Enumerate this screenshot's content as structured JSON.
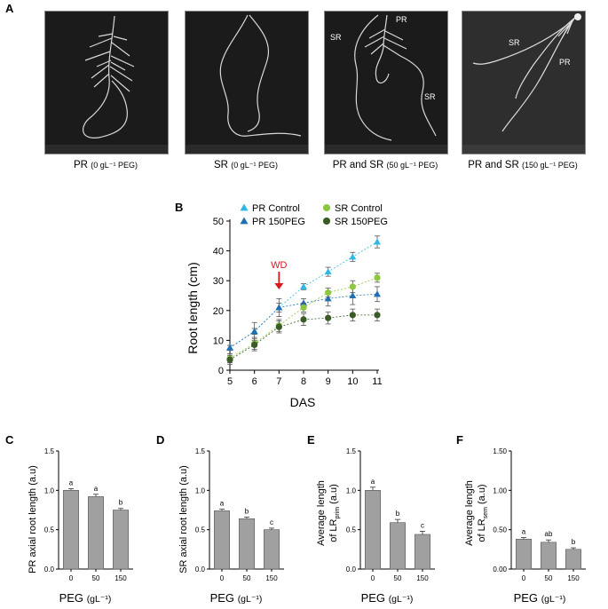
{
  "panel_a": {
    "letter": "A",
    "photos": [
      {
        "caption_main": "PR",
        "caption_detail": "(0 gL⁻¹ PEG)",
        "labels": []
      },
      {
        "caption_main": "SR",
        "caption_detail": "(0 gL⁻¹ PEG)",
        "labels": []
      },
      {
        "caption_main": "PR and SR",
        "caption_detail": "(50 gL⁻¹ PEG)",
        "labels": [
          "PR",
          "SR",
          "SR"
        ]
      },
      {
        "caption_main": "PR and SR",
        "caption_detail": "(150 gL⁻¹ PEG)",
        "labels": [
          "SR",
          "PR"
        ]
      }
    ]
  },
  "chart_data": [
    {
      "panel": "B",
      "type": "line",
      "title": "",
      "xlabel": "DAS",
      "ylabel": "Root length (cm)",
      "x": [
        5,
        6,
        7,
        8,
        9,
        10,
        11
      ],
      "xlim": [
        5,
        11
      ],
      "ylim": [
        0,
        50
      ],
      "yticks": [
        0,
        10,
        20,
        30,
        40,
        50
      ],
      "annotation": {
        "text": "WD",
        "x": 7,
        "color": "#d71920"
      },
      "legend_placement": "top-left",
      "series": [
        {
          "name": "PR Control",
          "marker": "triangle",
          "color": "#2eb8e6",
          "values": [
            7.5,
            13,
            21,
            28,
            33,
            38,
            43
          ],
          "errors": [
            0.8,
            1.0,
            1.5,
            1.0,
            1.5,
            1.5,
            2.0
          ]
        },
        {
          "name": "PR 150PEG",
          "marker": "triangle",
          "color": "#1f6fb5",
          "values": [
            7.5,
            13,
            21,
            22.5,
            24,
            25,
            25.5
          ],
          "errors": [
            0.8,
            3.0,
            3.0,
            1.5,
            2.5,
            3.0,
            2.5
          ]
        },
        {
          "name": "SR Control",
          "marker": "circle",
          "color": "#8dc63f",
          "values": [
            4,
            9,
            15,
            21,
            26,
            28,
            31
          ],
          "errors": [
            1.5,
            2.0,
            2.0,
            1.5,
            1.5,
            2.0,
            1.5
          ]
        },
        {
          "name": "SR 150PEG",
          "marker": "circle",
          "color": "#3a5a26",
          "values": [
            3.5,
            8.5,
            14.5,
            17,
            17.5,
            18.5,
            18.5
          ],
          "errors": [
            1.5,
            2.0,
            2.0,
            2.0,
            2.0,
            2.0,
            2.0
          ]
        }
      ]
    },
    {
      "panel": "C",
      "type": "bar",
      "ylabel": "PR axial root length (a.u)",
      "xlabel_main": "PEG",
      "xlabel_unit": "(gL⁻¹)",
      "categories": [
        "0",
        "50",
        "150"
      ],
      "values": [
        1.0,
        0.92,
        0.75
      ],
      "errors": [
        0.02,
        0.03,
        0.02
      ],
      "letters": [
        "a",
        "a",
        "b"
      ],
      "ylim": [
        0,
        1.5
      ],
      "yticks": [
        "0.0",
        "0.5",
        "1.0",
        "1.5"
      ],
      "bar_color": "#a0a0a0"
    },
    {
      "panel": "D",
      "type": "bar",
      "ylabel": "SR axial root length (a.u)",
      "xlabel_main": "PEG",
      "xlabel_unit": "(gL⁻¹)",
      "categories": [
        "0",
        "50",
        "150"
      ],
      "values": [
        0.74,
        0.64,
        0.5
      ],
      "errors": [
        0.02,
        0.02,
        0.02
      ],
      "letters": [
        "a",
        "b",
        "c"
      ],
      "ylim": [
        0,
        1.5
      ],
      "yticks": [
        "0.0",
        "0.5",
        "1.0",
        "1.5"
      ],
      "bar_color": "#a0a0a0"
    },
    {
      "panel": "E",
      "type": "bar",
      "ylabel_line1": "Average length",
      "ylabel_line2_prefix": "of LR",
      "ylabel_line2_sub": "prim",
      "ylabel_line2_suffix": " (a.u)",
      "xlabel_main": "PEG",
      "xlabel_unit": "(gL⁻¹)",
      "categories": [
        "0",
        "50",
        "150"
      ],
      "values": [
        1.0,
        0.59,
        0.44
      ],
      "errors": [
        0.04,
        0.04,
        0.04
      ],
      "letters": [
        "a",
        "b",
        "c"
      ],
      "ylim": [
        0,
        1.5
      ],
      "yticks": [
        "0.0",
        "0.5",
        "1.0",
        "1.5"
      ],
      "bar_color": "#a0a0a0"
    },
    {
      "panel": "F",
      "type": "bar",
      "ylabel_line1": "Average length",
      "ylabel_line2_prefix": "of LR",
      "ylabel_line2_sub": "sem",
      "ylabel_line2_suffix": " (a.u)",
      "xlabel_main": "PEG",
      "xlabel_unit": "(gL⁻¹)",
      "categories": [
        "0",
        "50",
        "150"
      ],
      "values": [
        0.38,
        0.34,
        0.25
      ],
      "errors": [
        0.02,
        0.03,
        0.02
      ],
      "letters": [
        "a",
        "ab",
        "b"
      ],
      "ylim": [
        0,
        1.5
      ],
      "yticks": [
        "0.00",
        "0.50",
        "1.00",
        "1.50"
      ],
      "bar_color": "#a0a0a0"
    }
  ]
}
